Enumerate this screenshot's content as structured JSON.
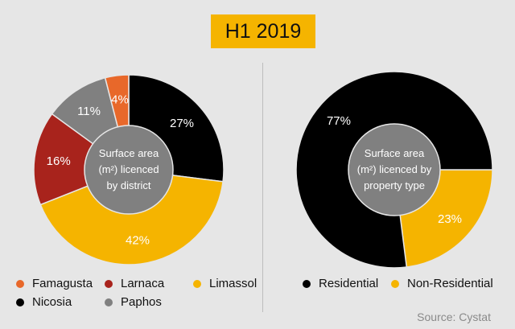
{
  "header": {
    "title": "H1 2019"
  },
  "colors": {
    "famagusta": "#e8682a",
    "larnaca": "#a8231c",
    "limassol": "#f5b400",
    "nicosia": "#000000",
    "paphos": "#808080",
    "center": "#808080"
  },
  "chart_data": [
    {
      "type": "pie",
      "center_text": [
        "Surface area",
        "(m²) licenced",
        "by district"
      ],
      "slices": [
        {
          "label": "Nicosia",
          "value": 27,
          "data_label": "27%"
        },
        {
          "label": "Limassol",
          "value": 42,
          "data_label": "42%"
        },
        {
          "label": "Larnaca",
          "value": 16,
          "data_label": "16%"
        },
        {
          "label": "Paphos",
          "value": 11,
          "data_label": "11%"
        },
        {
          "label": "Famagusta",
          "value": 4,
          "data_label": "4%"
        }
      ],
      "legend": [
        "Famagusta",
        "Larnaca",
        "Limassol",
        "Nicosia",
        "Paphos"
      ]
    },
    {
      "type": "pie",
      "center_text": [
        "Surface area",
        "(m²) licenced by",
        "property type"
      ],
      "slices": [
        {
          "label": "Non-Residential",
          "value": 23,
          "data_label": "23%"
        },
        {
          "label": "Residential",
          "value": 77,
          "data_label": "77%"
        }
      ],
      "legend": [
        "Residential",
        "Non-Residential"
      ]
    }
  ],
  "footer": {
    "source": "Source: Cystat"
  }
}
